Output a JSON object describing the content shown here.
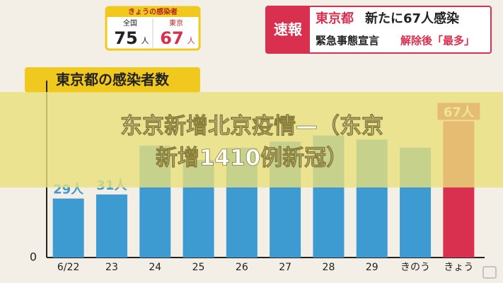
{
  "header": {
    "panel_title": "きょうの感染者",
    "nation_label": "全国",
    "nation_count": "75",
    "nation_unit": "人",
    "tokyo_label": "東京",
    "tokyo_count": "67",
    "tokyo_unit": "人"
  },
  "headline": {
    "badge": "速報",
    "line1_a": "東京都",
    "line1_b": "新たに67人感染",
    "line2_a": "緊急事態宣言",
    "line2_b": "解除後「最多」"
  },
  "overlay": {
    "lines": [
      "东京新增北京疫情—（东京",
      "新增1410例新冠）"
    ]
  },
  "chart_data": {
    "type": "bar",
    "title": "東京都の感染者数",
    "categories": [
      "6/22",
      "23",
      "24",
      "25",
      "26",
      "27",
      "28",
      "29",
      "きのう",
      "きょう"
    ],
    "values": [
      29,
      31,
      55,
      48,
      54,
      57,
      60,
      58,
      54,
      67
    ],
    "value_labels": [
      "29人",
      "31人",
      null,
      null,
      null,
      null,
      null,
      null,
      null,
      "67人"
    ],
    "colors": [
      "#3e9bd2",
      "#3e9bd2",
      "#3e9bd2",
      "#3e9bd2",
      "#3e9bd2",
      "#3e9bd2",
      "#3e9bd2",
      "#3e9bd2",
      "#3e9bd2",
      "#d9304f"
    ],
    "ylim": [
      0,
      80
    ],
    "yticks": [
      0
    ]
  }
}
